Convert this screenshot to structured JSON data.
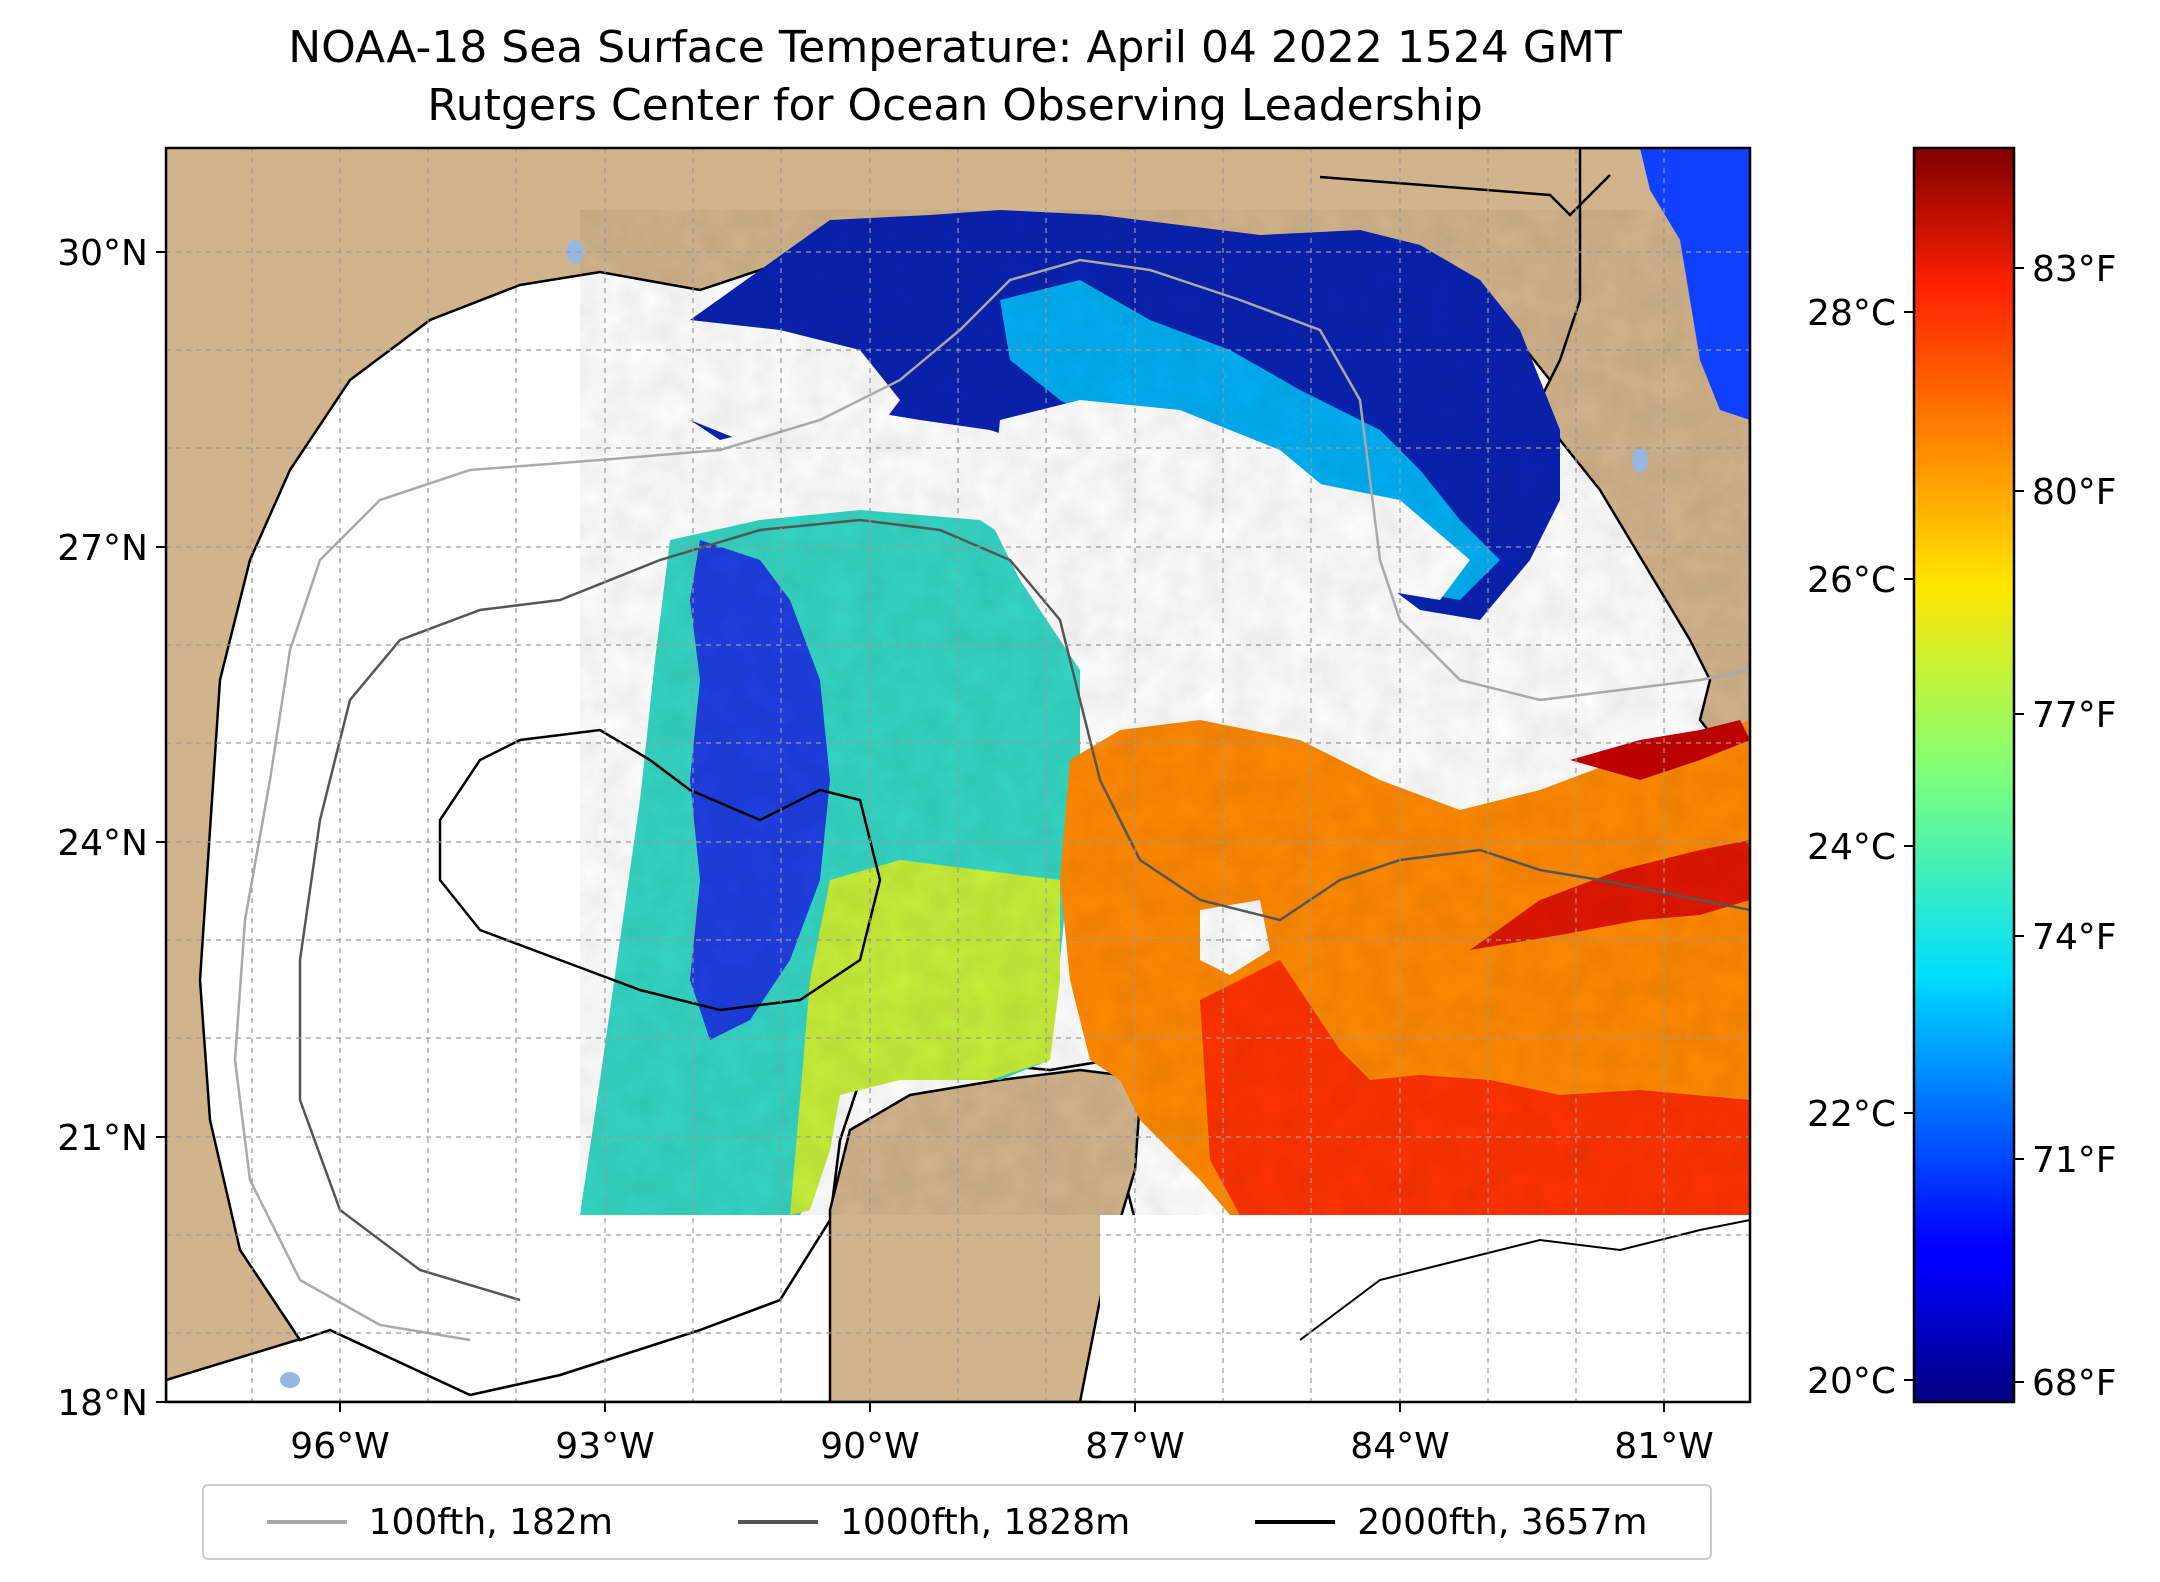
{
  "title": {
    "line1": "NOAA-18 Sea Surface Temperature: April 04 2022 1524 GMT",
    "line2": "Rutgers Center for Ocean Observing Leadership"
  },
  "map": {
    "lat_ticks": [
      "30°N",
      "27°N",
      "24°N",
      "21°N",
      "18°N"
    ],
    "lon_ticks": [
      "96°W",
      "93°W",
      "90°W",
      "87°W",
      "84°W",
      "81°W"
    ],
    "lat_range": [
      18,
      31
    ],
    "lon_range": [
      -98.3,
      -80.4
    ],
    "grid": true,
    "colors": {
      "land": "#d2b48c",
      "ocean_no_data": "#ffffff",
      "lakes": "#97b6e1",
      "coastline": "#000000"
    }
  },
  "colorbar": {
    "colormap": "jet",
    "celsius_ticks": [
      "28°C",
      "26°C",
      "24°C",
      "22°C",
      "20°C"
    ],
    "fahrenheit_ticks": [
      "83°F",
      "80°F",
      "77°F",
      "74°F",
      "71°F",
      "68°F"
    ],
    "range_celsius": [
      19.8,
      29.3
    ]
  },
  "legend": {
    "items": [
      {
        "label": "100fth, 182m",
        "color": "#a9a9a9"
      },
      {
        "label": "1000fth, 1828m",
        "color": "#555555"
      },
      {
        "label": "2000fth, 3657m",
        "color": "#000000"
      }
    ]
  }
}
